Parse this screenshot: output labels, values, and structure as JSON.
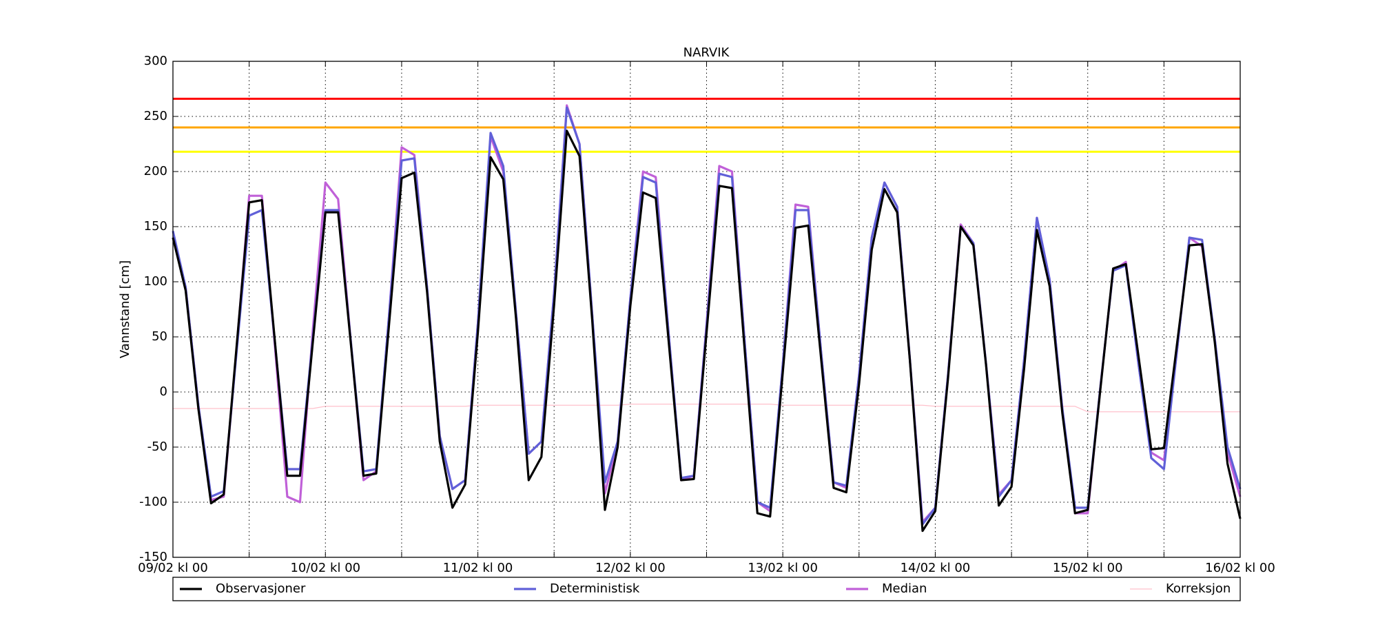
{
  "chart_data": {
    "type": "line",
    "title": "NARVIK",
    "y_label": "Vannstand [cm]",
    "x": [
      "09/02 kl 00",
      "09/02 kl 02",
      "09/02 kl 04",
      "09/02 kl 06",
      "09/02 kl 08",
      "09/02 kl 10",
      "09/02 kl 12",
      "09/02 kl 14",
      "09/02 kl 16",
      "09/02 kl 18",
      "09/02 kl 20",
      "09/02 kl 22",
      "10/02 kl 00",
      "10/02 kl 02",
      "10/02 kl 04",
      "10/02 kl 06",
      "10/02 kl 08",
      "10/02 kl 10",
      "10/02 kl 12",
      "10/02 kl 14",
      "10/02 kl 16",
      "10/02 kl 18",
      "10/02 kl 20",
      "10/02 kl 22",
      "11/02 kl 00",
      "11/02 kl 02",
      "11/02 kl 04",
      "11/02 kl 06",
      "11/02 kl 08",
      "11/02 kl 10",
      "11/02 kl 12",
      "11/02 kl 14",
      "11/02 kl 16",
      "11/02 kl 18",
      "11/02 kl 20",
      "11/02 kl 22",
      "12/02 kl 00",
      "12/02 kl 02",
      "12/02 kl 04",
      "12/02 kl 06",
      "12/02 kl 08",
      "12/02 kl 10",
      "12/02 kl 12",
      "12/02 kl 14",
      "12/02 kl 16",
      "12/02 kl 18",
      "12/02 kl 20",
      "12/02 kl 22",
      "13/02 kl 00",
      "13/02 kl 02",
      "13/02 kl 04",
      "13/02 kl 06",
      "13/02 kl 08",
      "13/02 kl 10",
      "13/02 kl 12",
      "13/02 kl 14",
      "13/02 kl 16",
      "13/02 kl 18",
      "13/02 kl 20",
      "13/02 kl 22",
      "14/02 kl 00",
      "14/02 kl 02",
      "14/02 kl 04",
      "14/02 kl 06",
      "14/02 kl 08",
      "14/02 kl 10",
      "14/02 kl 12",
      "14/02 kl 14",
      "14/02 kl 16",
      "14/02 kl 18",
      "14/02 kl 20",
      "14/02 kl 22",
      "15/02 kl 00",
      "15/02 kl 02",
      "15/02 kl 04",
      "15/02 kl 06",
      "15/02 kl 08",
      "15/02 kl 10",
      "15/02 kl 12",
      "15/02 kl 14",
      "15/02 kl 16",
      "15/02 kl 18",
      "15/02 kl 20",
      "15/02 kl 22",
      "16/02 kl 00"
    ],
    "xticks": [
      "09/02 kl 00",
      "10/02 kl 00",
      "11/02 kl 00",
      "12/02 kl 00",
      "13/02 kl 00",
      "14/02 kl 00",
      "15/02 kl 00",
      "16/02 kl 00"
    ],
    "minor_xticks": [
      "09/02 kl 12",
      "10/02 kl 12",
      "11/02 kl 12",
      "12/02 kl 12",
      "13/02 kl 12",
      "14/02 kl 12",
      "15/02 kl 12"
    ],
    "ylim": [
      -150,
      300
    ],
    "yticks": [
      -150,
      -100,
      -50,
      0,
      50,
      100,
      150,
      200,
      250,
      300
    ],
    "grid": true,
    "reference_lines": [
      {
        "value": 266,
        "color": "#ff0000"
      },
      {
        "value": 240,
        "color": "#ffa500"
      },
      {
        "value": 218,
        "color": "#ffff00"
      }
    ],
    "series": [
      {
        "name": "Observasjoner",
        "color": "#000000",
        "width": 2.5,
        "values": [
          140,
          92,
          -15,
          -101,
          -93,
          40,
          172,
          174,
          49,
          -76,
          -76,
          44,
          163,
          163,
          44,
          -76,
          -74,
          60,
          194,
          199,
          91,
          -45,
          -105,
          -84,
          54,
          213,
          193,
          67,
          -80,
          -59,
          79,
          237,
          214,
          65,
          -107,
          -50,
          78,
          181,
          176,
          48,
          -80,
          -79,
          54,
          187,
          185,
          38,
          -110,
          -113,
          18,
          149,
          151,
          32,
          -87,
          -91,
          7,
          129,
          184,
          163,
          29,
          -126,
          -108,
          12,
          150,
          133,
          24,
          -103,
          -86,
          22,
          147,
          96,
          -19,
          -110,
          -107,
          3,
          112,
          116,
          32,
          -52,
          -51,
          41,
          133,
          134,
          45,
          -65,
          -115
        ]
      },
      {
        "name": "Deterministisk",
        "color": "#6060d8",
        "width": 2.5,
        "values": [
          146,
          95,
          -12,
          -95,
          -90,
          35,
          160,
          165,
          48,
          -70,
          -70,
          48,
          165,
          165,
          46,
          -72,
          -70,
          68,
          210,
          212,
          95,
          -40,
          -88,
          -80,
          62,
          235,
          205,
          72,
          -56,
          -45,
          90,
          258,
          225,
          70,
          -82,
          -45,
          85,
          195,
          190,
          55,
          -78,
          -76,
          60,
          198,
          195,
          45,
          -100,
          -105,
          25,
          165,
          165,
          38,
          -82,
          -85,
          15,
          140,
          190,
          168,
          30,
          -120,
          -105,
          15,
          150,
          135,
          25,
          -95,
          -80,
          30,
          158,
          102,
          -15,
          -105,
          -105,
          5,
          110,
          115,
          25,
          -60,
          -70,
          35,
          140,
          138,
          48,
          -50,
          -88
        ]
      },
      {
        "name": "Median",
        "color": "#c060d8",
        "width": 2.5,
        "values": [
          140,
          95,
          -12,
          -98,
          -95,
          38,
          178,
          178,
          45,
          -95,
          -100,
          55,
          190,
          175,
          46,
          -80,
          -72,
          68,
          222,
          215,
          95,
          -40,
          -88,
          -80,
          62,
          232,
          200,
          72,
          -56,
          -45,
          90,
          260,
          225,
          70,
          -92,
          -45,
          85,
          200,
          195,
          55,
          -80,
          -76,
          62,
          205,
          200,
          45,
          -100,
          -108,
          25,
          170,
          168,
          38,
          -82,
          -87,
          15,
          140,
          190,
          168,
          30,
          -118,
          -105,
          15,
          152,
          135,
          25,
          -93,
          -80,
          30,
          158,
          102,
          -15,
          -110,
          -110,
          5,
          110,
          118,
          25,
          -55,
          -62,
          35,
          140,
          132,
          48,
          -55,
          -95
        ]
      },
      {
        "name": "Korreksjon",
        "color": "#ffc0cb",
        "width": 1,
        "values": [
          -15,
          -15,
          -15,
          -15,
          -15,
          -15,
          -15,
          -15,
          -15,
          -15,
          -15,
          -15,
          -13,
          -13,
          -13,
          -13,
          -13,
          -13,
          -13,
          -13,
          -13,
          -13,
          -13,
          -13,
          -12,
          -12,
          -12,
          -12,
          -12,
          -12,
          -12,
          -12,
          -12,
          -12,
          -12,
          -12,
          -11,
          -11,
          -11,
          -11,
          -11,
          -11,
          -11,
          -11,
          -11,
          -11,
          -11,
          -11,
          -12,
          -12,
          -12,
          -12,
          -12,
          -12,
          -12,
          -12,
          -12,
          -12,
          -12,
          -12,
          -13,
          -13,
          -13,
          -13,
          -13,
          -13,
          -13,
          -13,
          -13,
          -13,
          -13,
          -13,
          -18,
          -18,
          -18,
          -18,
          -18,
          -18,
          -18,
          -18,
          -18,
          -18,
          -18,
          -18,
          -18
        ]
      }
    ]
  }
}
